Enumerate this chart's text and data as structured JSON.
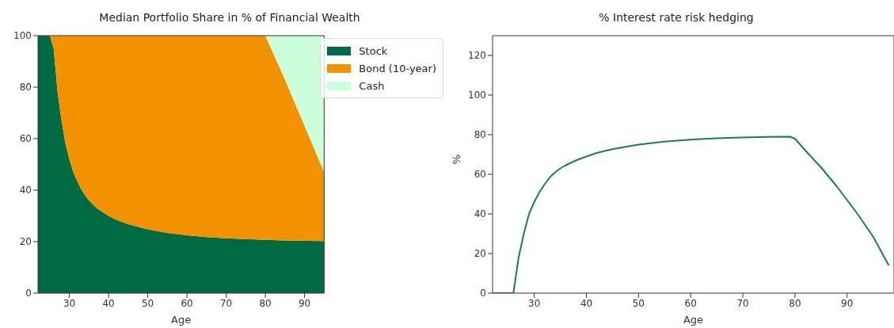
{
  "chart_data": [
    {
      "type": "area",
      "title": "Median Portfolio Share in % of Financial Wealth",
      "xlabel": "Age",
      "stacked": true,
      "legend": "top right",
      "x": [
        22,
        25,
        26,
        27,
        28,
        29,
        30,
        31,
        32,
        33,
        34,
        35,
        36,
        37,
        38,
        40,
        42,
        45,
        50,
        55,
        60,
        65,
        70,
        75,
        80,
        85,
        90,
        95
      ],
      "xlim": [
        22,
        95
      ],
      "xticks": [
        30,
        40,
        50,
        60,
        70,
        80,
        90
      ],
      "ylim": [
        0,
        100
      ],
      "yticks": [
        0,
        20,
        40,
        60,
        80,
        100
      ],
      "series": [
        {
          "name": "Stock",
          "color": "#006a43",
          "values": [
            100,
            100,
            95,
            78,
            67,
            58,
            52,
            47,
            43.5,
            40.5,
            38,
            36,
            34.5,
            33,
            32,
            30,
            28.5,
            26.8,
            24.8,
            23.4,
            22.5,
            21.8,
            21.3,
            21,
            20.7,
            20.5,
            20.3,
            20.2
          ]
        },
        {
          "name": "Bond (10-year)",
          "color": "#f39200",
          "values": [
            0,
            0,
            5,
            22,
            33,
            42,
            48,
            53,
            56.5,
            59.5,
            62,
            64,
            65.5,
            67,
            68,
            70,
            71.5,
            73.2,
            75.2,
            76.6,
            77.5,
            78.2,
            78.7,
            79,
            79.3,
            62.5,
            44.7,
            26.8
          ]
        },
        {
          "name": "Cash",
          "color": "#ccffd9",
          "values": [
            0,
            0,
            0,
            0,
            0,
            0,
            0,
            0,
            0,
            0,
            0,
            0,
            0,
            0,
            0,
            0,
            0,
            0,
            0,
            0,
            0,
            0,
            0,
            0,
            0,
            17,
            35,
            53
          ]
        }
      ]
    },
    {
      "type": "line",
      "title": "% Interest rate risk hedging",
      "xlabel": "Age",
      "ylabel": "%",
      "xlim": [
        22,
        99
      ],
      "xticks": [
        30,
        40,
        50,
        60,
        70,
        80,
        90
      ],
      "ylim": [
        0,
        130
      ],
      "yticks": [
        0,
        20,
        40,
        60,
        80,
        100,
        120
      ],
      "series": [
        {
          "color": "#1e7b5a",
          "x": [
            22,
            26,
            27,
            28,
            29,
            30,
            31,
            32,
            33,
            34,
            35,
            36,
            38,
            40,
            42,
            45,
            50,
            55,
            60,
            65,
            70,
            75,
            79,
            80,
            82,
            85,
            88,
            90,
            92,
            95,
            98
          ],
          "values": [
            0,
            0,
            18,
            30,
            40,
            46,
            51,
            55,
            58.5,
            61,
            63,
            64.5,
            67,
            69,
            70.8,
            72.7,
            75,
            76.5,
            77.5,
            78.2,
            78.6,
            78.9,
            79,
            78,
            72,
            63.5,
            54,
            47,
            40,
            28.5,
            14
          ]
        }
      ]
    }
  ]
}
